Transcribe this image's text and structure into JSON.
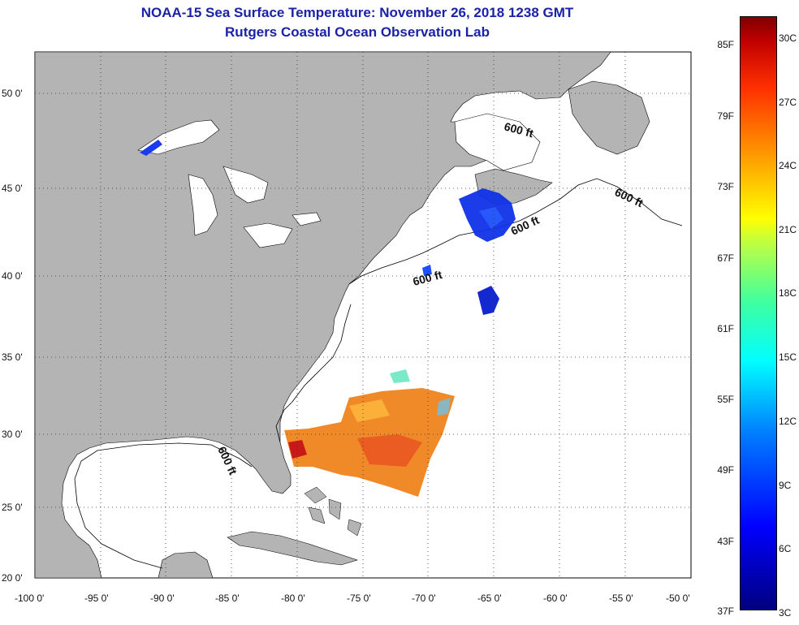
{
  "title_line1": "NOAA-15 Sea Surface Temperature:  November 26, 2018 1238 GMT",
  "title_line2": "Rutgers Coastal Ocean Observation Lab",
  "map": {
    "lon_ticks": [
      "-100 0'",
      "-95 0'",
      "-90 0'",
      "-85 0'",
      "-80 0'",
      "-75 0'",
      "-70 0'",
      "-65 0'",
      "-60 0'",
      "-55 0'",
      "-50 0'"
    ],
    "lat_ticks": [
      "50 0'",
      "45 0'",
      "40 0'",
      "35 0'",
      "30 0'",
      "25 0'",
      "20 0'"
    ],
    "contour_label": "600 ft"
  },
  "colorbar": {
    "fahrenheit": [
      "85F",
      "79F",
      "73F",
      "67F",
      "61F",
      "55F",
      "49F",
      "43F",
      "37F"
    ],
    "celsius": [
      "30C",
      "27C",
      "24C",
      "21C",
      "18C",
      "15C",
      "12C",
      "9C",
      "6C",
      "3C"
    ]
  },
  "colors": {
    "land": "#b4b4b4",
    "title": "#1a22a8",
    "cold": "#1020e0",
    "warm": "#f07020"
  }
}
